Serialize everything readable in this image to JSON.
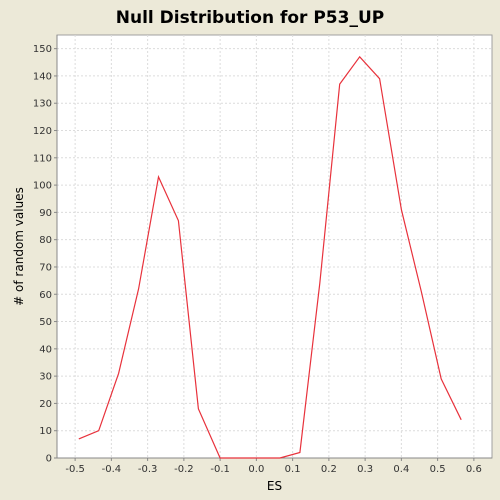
{
  "chart_data": {
    "type": "line",
    "title": "Null Distribution for P53_UP",
    "xlabel": "ES",
    "ylabel": "# of random values",
    "xlim": [
      -0.55,
      0.65
    ],
    "ylim": [
      0,
      155
    ],
    "xticks": [
      -0.5,
      -0.4,
      -0.3,
      -0.2,
      -0.1,
      0.0,
      0.1,
      0.2,
      0.3,
      0.4,
      0.5,
      0.6
    ],
    "xtick_labels": [
      "-0.5",
      "-0.4",
      "-0.3",
      "-0.2",
      "-0.1",
      "0.0",
      "0.1",
      "0.2",
      "0.3",
      "0.4",
      "0.5",
      "0.6"
    ],
    "yticks": [
      0,
      10,
      20,
      30,
      40,
      50,
      60,
      70,
      80,
      90,
      100,
      110,
      120,
      130,
      140,
      150
    ],
    "grid": true,
    "series": [
      {
        "color": "#e8323c",
        "x": [
          -0.49,
          -0.435,
          -0.38,
          -0.325,
          -0.27,
          -0.215,
          -0.16,
          -0.1,
          -0.045,
          0.01,
          0.065,
          0.12,
          0.175,
          0.23,
          0.285,
          0.34,
          0.4,
          0.455,
          0.51,
          0.565
        ],
        "y": [
          7,
          10,
          31,
          62,
          103,
          87,
          18,
          0,
          0,
          0,
          0,
          2,
          64,
          137,
          147,
          139,
          91,
          61,
          29,
          14
        ]
      }
    ]
  }
}
